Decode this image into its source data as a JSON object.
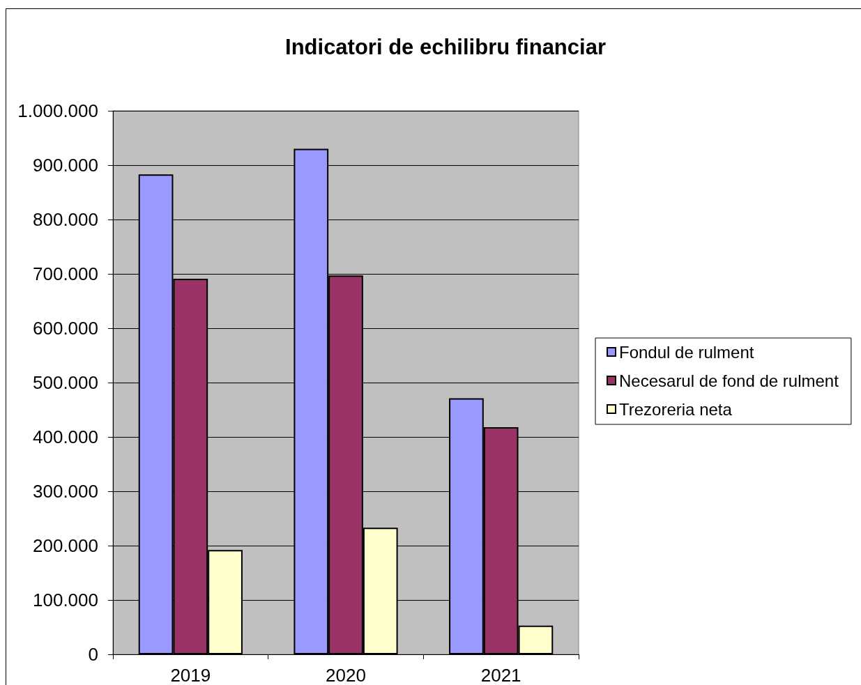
{
  "chart_data": {
    "type": "bar",
    "title": "Indicatori de echilibru financiar",
    "categories": [
      "2019",
      "2020",
      "2021"
    ],
    "series": [
      {
        "name": "Fondul de rulment",
        "color": "#9999ff",
        "values": [
          883000,
          930000,
          471000
        ]
      },
      {
        "name": "Necesarul de fond de rulment",
        "color": "#993366",
        "values": [
          691000,
          697000,
          418000
        ]
      },
      {
        "name": "Trezoreria neta",
        "color": "#ffffcc",
        "values": [
          192000,
          233000,
          53000
        ]
      }
    ],
    "ylim": [
      0,
      1000000
    ],
    "yticks": [
      0,
      {
        "value": 100000,
        "label": "100.000"
      },
      {
        "value": 200000,
        "label": "200.000"
      },
      {
        "value": 300000,
        "label": "300.000"
      },
      {
        "value": 400000,
        "label": "400.000"
      },
      {
        "value": 500000,
        "label": "500.000"
      },
      {
        "value": 600000,
        "label": "600.000"
      },
      {
        "value": 700000,
        "label": "700.000"
      },
      {
        "value": 800000,
        "label": "800.000"
      },
      {
        "value": 900000,
        "label": "900.000"
      },
      {
        "value": 1000000,
        "label": "1.000.000"
      }
    ],
    "grid": "y",
    "legend": "right"
  }
}
